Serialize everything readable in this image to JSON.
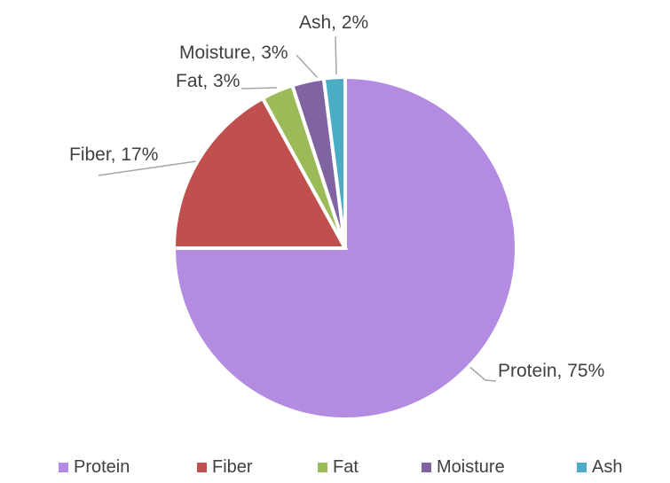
{
  "chart_data": {
    "type": "pie",
    "title": "",
    "categories": [
      "Protein",
      "Fiber",
      "Fat",
      "Moisture",
      "Ash"
    ],
    "values": [
      75,
      17,
      3,
      3,
      2
    ],
    "unit": "%",
    "colors": [
      "#b38ce2",
      "#c0504d",
      "#9bbb59",
      "#8064a2",
      "#4bacc6"
    ],
    "data_labels": [
      "Protein, 75%",
      "Fiber, 17%",
      "Fat, 3%",
      "Moisture, 3%",
      "Ash, 2%"
    ],
    "legend": {
      "position": "bottom",
      "entries": [
        "Protein",
        "Fiber",
        "Fat",
        "Moisture",
        "Ash"
      ]
    },
    "start_angle_deg": 0,
    "direction": "clockwise",
    "slice_border_color": "#ffffff",
    "leader_line_color": "#a6a6a6",
    "label_text_color": "#404040",
    "background_color": "#ffffff"
  }
}
